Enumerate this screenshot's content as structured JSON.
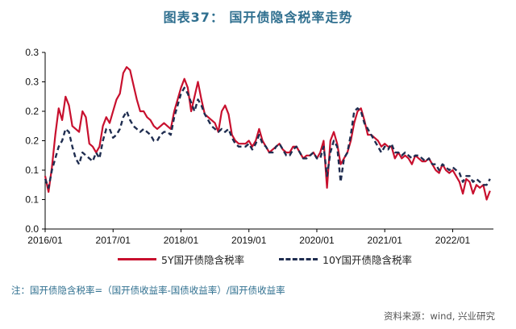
{
  "title": "图表37：   国开债隐含税率走势",
  "note": "注：国开债隐含税率=（国开债收益率-国债收益率）/国开债收益率",
  "source": "资料来源：wind, 兴业研究",
  "colors": {
    "series1": "#c8102e",
    "series2": "#1f2d50",
    "axis": "#000000"
  },
  "chart_data": {
    "type": "line",
    "ylim": [
      0,
      0.3
    ],
    "yticks": [
      0.0,
      0.05,
      0.1,
      0.15,
      0.2,
      0.25,
      0.3
    ],
    "ytick_labels": [
      "0.0",
      "0.1",
      "0.1",
      "0.2",
      "0.2",
      "0.3",
      "0.3"
    ],
    "xlim": [
      2016.0,
      2022.6
    ],
    "xticks": [
      2016,
      2017,
      2018,
      2019,
      2020,
      2021,
      2022
    ],
    "xtick_labels": [
      "2016/01",
      "2017/01",
      "2018/01",
      "2019/01",
      "2020/01",
      "2021/01",
      "2022/01"
    ],
    "grid": false,
    "legend_position": "bottom",
    "series": [
      {
        "name": "5Y国开债隐含税率",
        "style": "solid",
        "x": [
          2016.0,
          2016.05,
          2016.1,
          2016.15,
          2016.2,
          2016.25,
          2016.3,
          2016.35,
          2016.4,
          2016.45,
          2016.5,
          2016.55,
          2016.6,
          2016.65,
          2016.7,
          2016.75,
          2016.8,
          2016.85,
          2016.9,
          2016.95,
          2017.0,
          2017.05,
          2017.1,
          2017.15,
          2017.2,
          2017.25,
          2017.3,
          2017.35,
          2017.4,
          2017.45,
          2017.5,
          2017.55,
          2017.6,
          2017.65,
          2017.7,
          2017.75,
          2017.8,
          2017.85,
          2017.9,
          2017.95,
          2018.0,
          2018.05,
          2018.1,
          2018.15,
          2018.2,
          2018.25,
          2018.3,
          2018.35,
          2018.4,
          2018.45,
          2018.5,
          2018.55,
          2018.6,
          2018.65,
          2018.7,
          2018.75,
          2018.8,
          2018.85,
          2018.9,
          2018.95,
          2019.0,
          2019.05,
          2019.1,
          2019.15,
          2019.2,
          2019.25,
          2019.3,
          2019.35,
          2019.4,
          2019.45,
          2019.5,
          2019.55,
          2019.6,
          2019.65,
          2019.7,
          2019.75,
          2019.8,
          2019.85,
          2019.9,
          2019.95,
          2020.0,
          2020.05,
          2020.1,
          2020.15,
          2020.2,
          2020.25,
          2020.3,
          2020.35,
          2020.4,
          2020.45,
          2020.5,
          2020.55,
          2020.6,
          2020.65,
          2020.7,
          2020.75,
          2020.8,
          2020.85,
          2020.9,
          2020.95,
          2021.0,
          2021.05,
          2021.1,
          2021.15,
          2021.2,
          2021.25,
          2021.3,
          2021.35,
          2021.4,
          2021.45,
          2021.5,
          2021.55,
          2021.6,
          2021.65,
          2021.7,
          2021.75,
          2021.8,
          2021.85,
          2021.9,
          2021.95,
          2022.0,
          2022.05,
          2022.1,
          2022.15,
          2022.2,
          2022.25,
          2022.3,
          2022.35,
          2022.4,
          2022.45,
          2022.5,
          2022.55
        ],
        "values": [
          0.09,
          0.063,
          0.105,
          0.16,
          0.205,
          0.185,
          0.225,
          0.21,
          0.175,
          0.17,
          0.165,
          0.2,
          0.19,
          0.145,
          0.14,
          0.13,
          0.14,
          0.175,
          0.19,
          0.18,
          0.2,
          0.22,
          0.23,
          0.265,
          0.275,
          0.27,
          0.245,
          0.22,
          0.2,
          0.2,
          0.19,
          0.185,
          0.175,
          0.17,
          0.175,
          0.18,
          0.175,
          0.17,
          0.2,
          0.22,
          0.24,
          0.255,
          0.24,
          0.2,
          0.225,
          0.25,
          0.22,
          0.195,
          0.19,
          0.185,
          0.18,
          0.165,
          0.2,
          0.21,
          0.195,
          0.16,
          0.15,
          0.145,
          0.145,
          0.145,
          0.15,
          0.14,
          0.15,
          0.17,
          0.15,
          0.14,
          0.13,
          0.135,
          0.14,
          0.145,
          0.135,
          0.13,
          0.13,
          0.14,
          0.14,
          0.13,
          0.12,
          0.125,
          0.125,
          0.13,
          0.12,
          0.13,
          0.15,
          0.07,
          0.15,
          0.165,
          0.145,
          0.11,
          0.12,
          0.13,
          0.15,
          0.18,
          0.2,
          0.205,
          0.185,
          0.16,
          0.16,
          0.155,
          0.15,
          0.14,
          0.145,
          0.14,
          0.14,
          0.12,
          0.13,
          0.12,
          0.125,
          0.12,
          0.11,
          0.125,
          0.12,
          0.115,
          0.115,
          0.12,
          0.11,
          0.1,
          0.095,
          0.11,
          0.1,
          0.095,
          0.1,
          0.09,
          0.08,
          0.06,
          0.085,
          0.08,
          0.06,
          0.075,
          0.07,
          0.075,
          0.05,
          0.065
        ]
      },
      {
        "name": "10Y国开债隐含税率",
        "style": "dashed",
        "x": [
          2016.0,
          2016.05,
          2016.1,
          2016.15,
          2016.2,
          2016.25,
          2016.3,
          2016.35,
          2016.4,
          2016.45,
          2016.5,
          2016.55,
          2016.6,
          2016.65,
          2016.7,
          2016.75,
          2016.8,
          2016.85,
          2016.9,
          2016.95,
          2017.0,
          2017.05,
          2017.1,
          2017.15,
          2017.2,
          2017.25,
          2017.3,
          2017.35,
          2017.4,
          2017.45,
          2017.5,
          2017.55,
          2017.6,
          2017.65,
          2017.7,
          2017.75,
          2017.8,
          2017.85,
          2017.9,
          2017.95,
          2018.0,
          2018.05,
          2018.1,
          2018.15,
          2018.2,
          2018.25,
          2018.3,
          2018.35,
          2018.4,
          2018.45,
          2018.5,
          2018.55,
          2018.6,
          2018.65,
          2018.7,
          2018.75,
          2018.8,
          2018.85,
          2018.9,
          2018.95,
          2019.0,
          2019.05,
          2019.1,
          2019.15,
          2019.2,
          2019.25,
          2019.3,
          2019.35,
          2019.4,
          2019.45,
          2019.5,
          2019.55,
          2019.6,
          2019.65,
          2019.7,
          2019.75,
          2019.8,
          2019.85,
          2019.9,
          2019.95,
          2020.0,
          2020.05,
          2020.1,
          2020.15,
          2020.2,
          2020.25,
          2020.3,
          2020.35,
          2020.4,
          2020.45,
          2020.5,
          2020.55,
          2020.6,
          2020.65,
          2020.7,
          2020.75,
          2020.8,
          2020.85,
          2020.9,
          2020.95,
          2021.0,
          2021.05,
          2021.1,
          2021.15,
          2021.2,
          2021.25,
          2021.3,
          2021.35,
          2021.4,
          2021.45,
          2021.5,
          2021.55,
          2021.6,
          2021.65,
          2021.7,
          2021.75,
          2021.8,
          2021.85,
          2021.9,
          2021.95,
          2022.0,
          2022.05,
          2022.1,
          2022.15,
          2022.2,
          2022.25,
          2022.3,
          2022.35,
          2022.4,
          2022.45,
          2022.5,
          2022.55
        ],
        "values": [
          0.085,
          0.07,
          0.1,
          0.12,
          0.14,
          0.15,
          0.17,
          0.165,
          0.14,
          0.12,
          0.11,
          0.13,
          0.125,
          0.12,
          0.115,
          0.13,
          0.12,
          0.15,
          0.17,
          0.17,
          0.155,
          0.16,
          0.17,
          0.19,
          0.2,
          0.185,
          0.175,
          0.17,
          0.165,
          0.17,
          0.165,
          0.16,
          0.15,
          0.15,
          0.16,
          0.165,
          0.165,
          0.16,
          0.19,
          0.21,
          0.23,
          0.24,
          0.23,
          0.215,
          0.2,
          0.22,
          0.21,
          0.195,
          0.185,
          0.175,
          0.17,
          0.165,
          0.17,
          0.165,
          0.17,
          0.155,
          0.145,
          0.14,
          0.14,
          0.14,
          0.145,
          0.135,
          0.145,
          0.16,
          0.145,
          0.14,
          0.13,
          0.13,
          0.14,
          0.145,
          0.135,
          0.125,
          0.125,
          0.135,
          0.14,
          0.13,
          0.12,
          0.12,
          0.125,
          0.13,
          0.12,
          0.12,
          0.14,
          0.09,
          0.13,
          0.15,
          0.14,
          0.08,
          0.12,
          0.13,
          0.16,
          0.2,
          0.205,
          0.2,
          0.18,
          0.17,
          0.16,
          0.15,
          0.14,
          0.13,
          0.14,
          0.135,
          0.145,
          0.13,
          0.13,
          0.125,
          0.13,
          0.125,
          0.12,
          0.125,
          0.125,
          0.12,
          0.115,
          0.12,
          0.11,
          0.11,
          0.1,
          0.11,
          0.105,
          0.1,
          0.105,
          0.1,
          0.095,
          0.08,
          0.09,
          0.09,
          0.08,
          0.085,
          0.08,
          0.075,
          0.075,
          0.085
        ]
      }
    ]
  }
}
